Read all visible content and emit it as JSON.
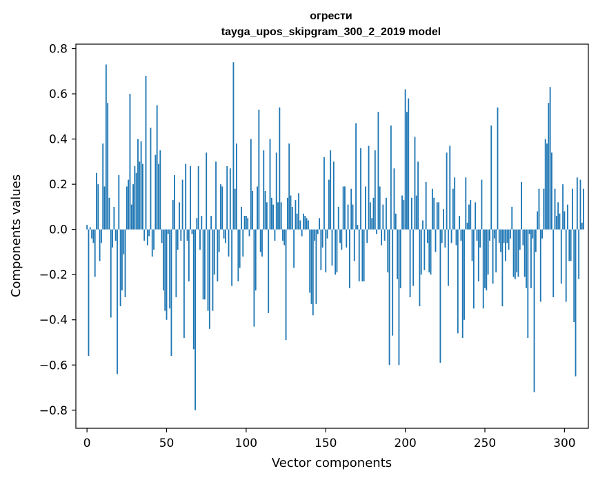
{
  "chart_data": {
    "type": "bar",
    "title": "огрести",
    "subtitle": "tayga_upos_skipgram_300_2_2019 model",
    "xlabel": "Vector components",
    "ylabel": "Components values",
    "xlim": [
      -7,
      315
    ],
    "ylim": [
      -0.88,
      0.82
    ],
    "xticks": [
      0,
      50,
      100,
      150,
      200,
      250,
      300
    ],
    "xtick_labels": [
      "0",
      "50",
      "100",
      "150",
      "200",
      "250",
      "300"
    ],
    "yticks": [
      0.8,
      0.6,
      0.4,
      0.2,
      0.0,
      -0.2,
      -0.4,
      -0.6,
      -0.8
    ],
    "ytick_labels": [
      "0.8",
      "0.6",
      "0.4",
      "0.2",
      "0.0",
      "−0.2",
      "−0.4",
      "−0.6",
      "−0.8"
    ],
    "bar_color": "#1f77b4",
    "grid": false,
    "legend": "none",
    "values": [
      0.02,
      -0.56,
      0.01,
      -0.04,
      -0.06,
      -0.21,
      0.25,
      0.2,
      -0.14,
      -0.06,
      0.38,
      0.19,
      0.73,
      0.56,
      0.14,
      -0.39,
      -0.08,
      0.1,
      -0.05,
      -0.64,
      0.24,
      -0.34,
      -0.27,
      -0.11,
      -0.3,
      0.19,
      0.22,
      0.6,
      0.11,
      0.2,
      0.28,
      0.25,
      0.4,
      0.3,
      0.39,
      0.29,
      -0.05,
      0.68,
      -0.07,
      -0.03,
      0.45,
      -0.12,
      -0.09,
      0.33,
      0.55,
      0.29,
      0.35,
      -0.06,
      -0.27,
      -0.36,
      -0.4,
      -0.02,
      -0.35,
      -0.56,
      0.13,
      0.24,
      -0.3,
      -0.09,
      0.12,
      -0.05,
      0.22,
      -0.48,
      0.29,
      -0.05,
      -0.23,
      0.28,
      -0.02,
      -0.53,
      -0.8,
      0.05,
      0.28,
      -0.09,
      0.06,
      -0.31,
      -0.31,
      0.34,
      -0.36,
      -0.44,
      0.06,
      -0.36,
      -0.2,
      0.3,
      -0.23,
      -0.1,
      0.2,
      0.19,
      -0.04,
      -0.06,
      0.28,
      -0.12,
      0.27,
      -0.25,
      0.74,
      0.18,
      0.38,
      -0.23,
      -0.17,
      0.1,
      -0.12,
      0.06,
      0.06,
      0.05,
      -0.03,
      0.4,
      0.17,
      -0.43,
      -0.27,
      0.19,
      0.53,
      -0.1,
      -0.12,
      0.35,
      0.17,
      0.12,
      -0.37,
      0.4,
      0.14,
      0.11,
      -0.05,
      0.34,
      0.12,
      0.54,
      0.12,
      -0.05,
      -0.07,
      -0.49,
      0.14,
      0.38,
      0.15,
      0.1,
      -0.17,
      0.13,
      0.07,
      0.16,
      0.04,
      -0.03,
      0.07,
      0.06,
      0.05,
      0.04,
      -0.28,
      -0.33,
      -0.38,
      -0.05,
      -0.33,
      -0.02,
      0.05,
      -0.18,
      -0.08,
      0.32,
      -0.19,
      -0.04,
      0.22,
      0.35,
      -0.16,
      0.3,
      -0.2,
      -0.19,
      0.1,
      -0.06,
      -0.09,
      0.19,
      0.19,
      -0.08,
      0.11,
      -0.26,
      0.18,
      0.11,
      -0.14,
      0.47,
      0.02,
      -0.23,
      0.36,
      -0.23,
      -0.23,
      0.19,
      -0.06,
      0.37,
      0.12,
      0.05,
      0.14,
      0.35,
      -0.02,
      0.52,
      0.19,
      -0.07,
      0.11,
      -0.05,
      0.14,
      -0.19,
      -0.6,
      0.46,
      -0.47,
      0.27,
      0.07,
      -0.22,
      -0.6,
      -0.26,
      0.15,
      0.13,
      0.62,
      0.52,
      0.58,
      -0.3,
      0.14,
      -0.25,
      0.41,
      0.15,
      0.3,
      -0.34,
      -0.2,
      0.04,
      -0.18,
      0.21,
      -0.06,
      -0.19,
      -0.2,
      0.18,
      0.14,
      -0.1,
      0.12,
      0.12,
      -0.59,
      -0.06,
      0.09,
      -0.08,
      0.34,
      -0.25,
      0.37,
      -0.06,
      0.18,
      0.23,
      -0.07,
      -0.46,
      0.06,
      -0.05,
      -0.48,
      -0.4,
      0.23,
      0.03,
      0.11,
      0.13,
      -0.14,
      -0.35,
      0.12,
      -0.05,
      -0.23,
      -0.08,
      0.22,
      -0.35,
      -0.26,
      -0.27,
      -0.2,
      -0.05,
      0.46,
      -0.24,
      -0.04,
      -0.19,
      0.54,
      -0.06,
      -0.1,
      -0.34,
      -0.06,
      -0.14,
      -0.06,
      -0.09,
      -0.04,
      0.1,
      -0.21,
      -0.22,
      -0.19,
      -0.21,
      -0.09,
      0.21,
      -0.07,
      -0.21,
      -0.26,
      -0.48,
      -0.02,
      -0.26,
      -0.04,
      -0.72,
      -0.1,
      0.08,
      0.18,
      -0.32,
      -0.04,
      0.18,
      0.4,
      0.38,
      0.56,
      0.63,
      0.34,
      -0.3,
      0.18,
      0.06,
      0.12,
      0.07,
      -0.24,
      0.2,
      0.08,
      -0.32,
      0.11,
      -0.14,
      -0.14,
      0.18,
      -0.41,
      -0.65,
      0.23,
      -0.22,
      0.22,
      0.03,
      0.18
    ]
  }
}
